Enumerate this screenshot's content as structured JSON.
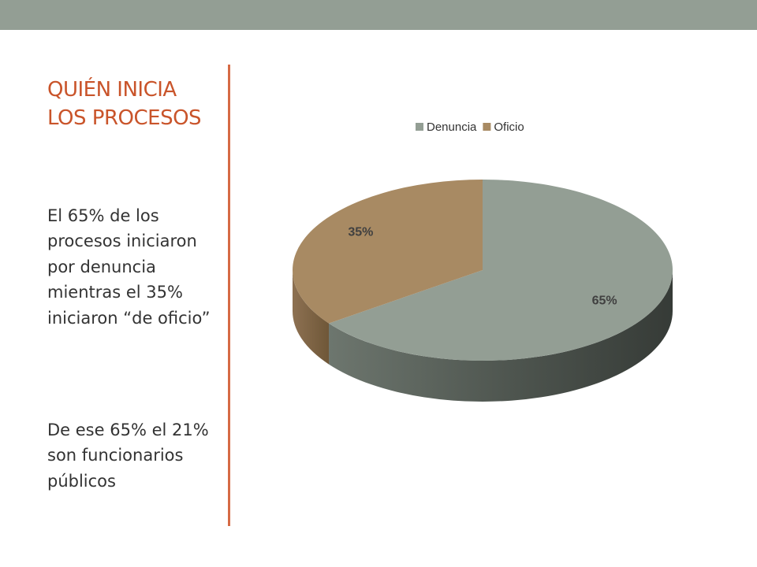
{
  "slide": {
    "title": "QUIÉN INICIA LOS PROCESOS",
    "paragraphs": [
      "El 65% de los procesos iniciaron por denuncia mientras el 35% iniciaron “de oficio”",
      "De ese 65% el 21% son funcionarios públicos"
    ]
  },
  "colors": {
    "top_bar": "#939e94",
    "title": "#c9542a",
    "divider": "#d66a45",
    "denuncia": "#939e94",
    "oficio": "#a88a63"
  },
  "chart_data": {
    "type": "pie",
    "style": "3d",
    "legend_position": "top",
    "categories": [
      "Denuncia",
      "Oficio"
    ],
    "values": [
      65,
      35
    ],
    "data_labels": [
      "65%",
      "35%"
    ],
    "colors": [
      "#939e94",
      "#a88a63"
    ]
  }
}
